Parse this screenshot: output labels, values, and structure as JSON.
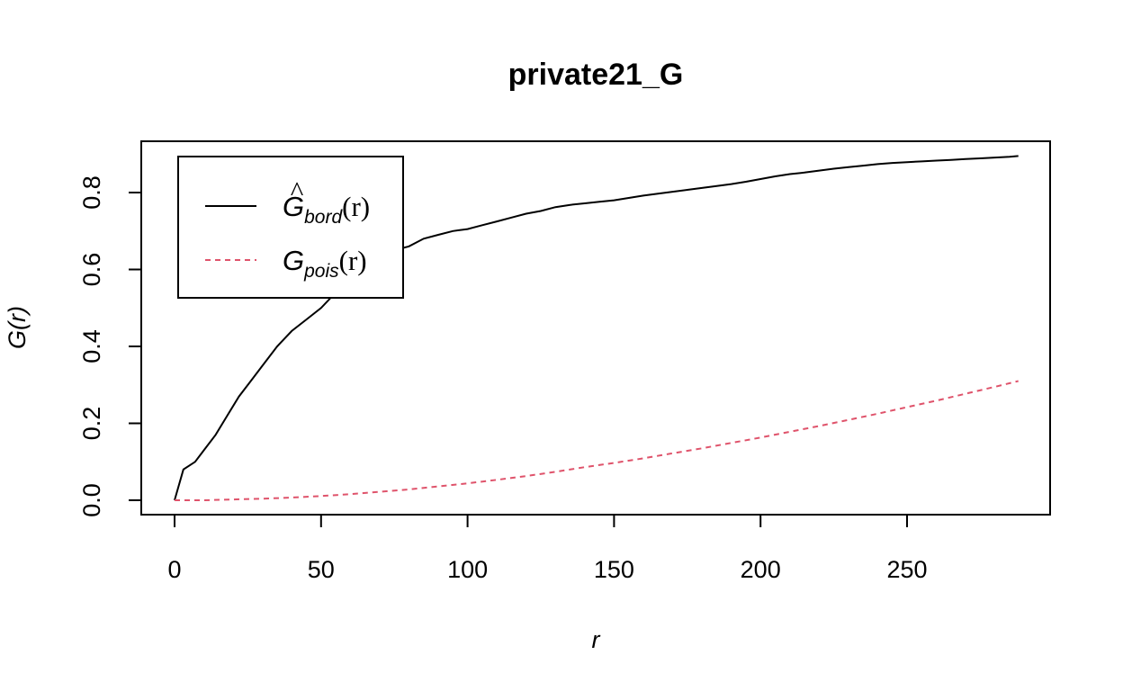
{
  "chart_data": {
    "type": "line",
    "title": "private21_G",
    "xlabel": "r",
    "ylabel": "G(r)",
    "xlim": [
      0,
      290
    ],
    "ylim": [
      0,
      0.9
    ],
    "x_ticks": [
      0,
      50,
      100,
      150,
      200,
      250
    ],
    "x_tick_labels": [
      "0",
      "50",
      "100",
      "150",
      "200",
      "250"
    ],
    "y_ticks": [
      0.0,
      0.2,
      0.4,
      0.6,
      0.8
    ],
    "y_tick_labels": [
      "0.0",
      "0.2",
      "0.4",
      "0.6",
      "0.8"
    ],
    "grid": false,
    "legend_position": "top-left",
    "series": [
      {
        "name": "Ĝbord(r)",
        "legend_main": "G",
        "legend_hat": "^",
        "legend_sub": "bord",
        "legend_arg": "(r)",
        "color": "#000000",
        "dash": "solid",
        "x": [
          0,
          3,
          7,
          10,
          14,
          18,
          22,
          26,
          30,
          35,
          40,
          45,
          50,
          55,
          60,
          65,
          70,
          75,
          80,
          85,
          90,
          95,
          100,
          105,
          110,
          115,
          120,
          125,
          130,
          135,
          140,
          145,
          150,
          155,
          160,
          165,
          170,
          175,
          180,
          185,
          190,
          195,
          200,
          205,
          210,
          215,
          220,
          225,
          230,
          235,
          240,
          245,
          250,
          255,
          260,
          265,
          270,
          275,
          280,
          285,
          288
        ],
        "y": [
          0.0,
          0.08,
          0.1,
          0.13,
          0.17,
          0.22,
          0.27,
          0.31,
          0.35,
          0.4,
          0.44,
          0.47,
          0.5,
          0.54,
          0.57,
          0.6,
          0.63,
          0.65,
          0.66,
          0.68,
          0.69,
          0.7,
          0.705,
          0.715,
          0.725,
          0.735,
          0.745,
          0.752,
          0.762,
          0.768,
          0.772,
          0.776,
          0.78,
          0.786,
          0.792,
          0.797,
          0.802,
          0.807,
          0.812,
          0.817,
          0.822,
          0.828,
          0.835,
          0.842,
          0.848,
          0.852,
          0.857,
          0.862,
          0.866,
          0.87,
          0.874,
          0.877,
          0.879,
          0.881,
          0.883,
          0.885,
          0.887,
          0.889,
          0.891,
          0.893,
          0.895
        ]
      },
      {
        "name": "Gpois(r)",
        "legend_main": "G",
        "legend_hat": "",
        "legend_sub": "pois",
        "legend_arg": "(r)",
        "color": "#df536b",
        "dash": "dashed",
        "x": [
          0,
          10,
          20,
          30,
          40,
          50,
          60,
          70,
          80,
          90,
          100,
          110,
          120,
          130,
          140,
          150,
          160,
          170,
          180,
          190,
          200,
          210,
          220,
          230,
          240,
          250,
          260,
          270,
          280,
          288
        ],
        "y": [
          0.0,
          0.0,
          0.002,
          0.004,
          0.007,
          0.011,
          0.016,
          0.022,
          0.028,
          0.036,
          0.044,
          0.053,
          0.063,
          0.074,
          0.086,
          0.097,
          0.109,
          0.122,
          0.135,
          0.149,
          0.163,
          0.178,
          0.193,
          0.209,
          0.225,
          0.242,
          0.259,
          0.277,
          0.295,
          0.31
        ]
      }
    ]
  }
}
